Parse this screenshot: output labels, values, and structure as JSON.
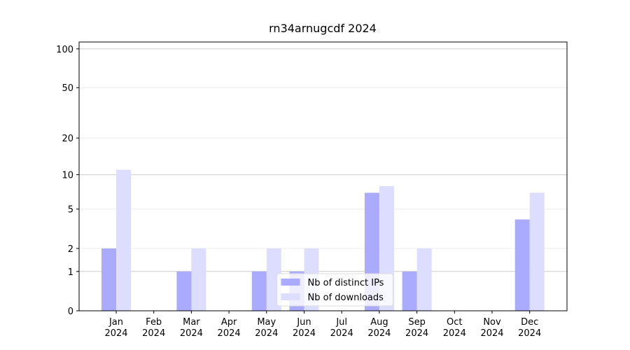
{
  "chart_data": {
    "type": "bar",
    "title": "rn34arnugcdf 2024",
    "categories": [
      "Jan\n2024",
      "Feb\n2024",
      "Mar\n2024",
      "Apr\n2024",
      "May\n2024",
      "Jun\n2024",
      "Jul\n2024",
      "Aug\n2024",
      "Sep\n2024",
      "Oct\n2024",
      "Nov\n2024",
      "Dec\n2024"
    ],
    "series": [
      {
        "name": "Nb of distinct IPs",
        "color": "#aaaaff",
        "values": [
          2,
          0,
          1,
          0,
          1,
          1,
          0,
          7,
          1,
          0,
          0,
          4
        ]
      },
      {
        "name": "Nb of downloads",
        "color": "#ddddff",
        "values": [
          11,
          0,
          2,
          0,
          2,
          2,
          0,
          8,
          2,
          0,
          0,
          7
        ]
      }
    ],
    "y_scale": "log1p",
    "ylim": [
      0,
      113
    ],
    "yticks": [
      0,
      1,
      2,
      5,
      10,
      20,
      50,
      100
    ],
    "grid": true,
    "legend": "lower center"
  }
}
